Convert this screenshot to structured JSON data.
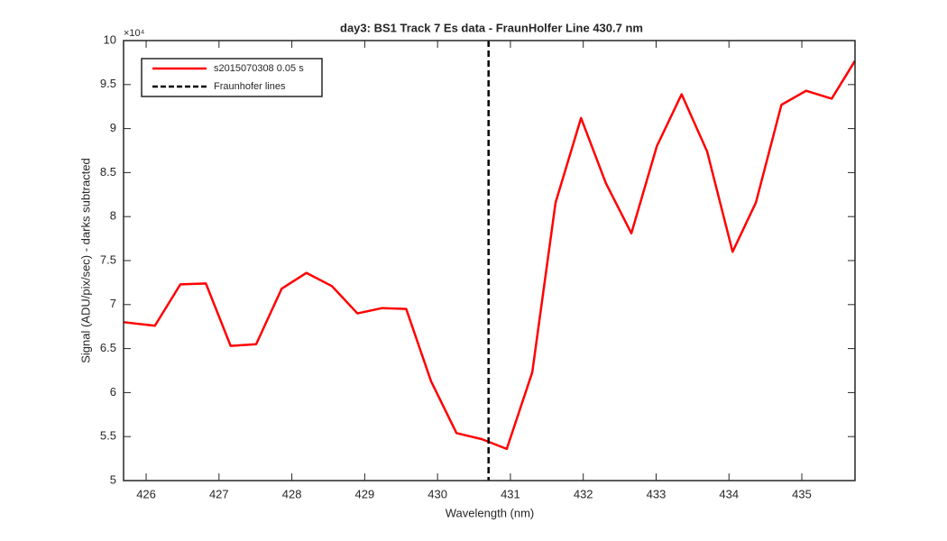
{
  "chart_data": {
    "type": "line",
    "title": "day3: BS1  Track 7 Es data - FraunHolfer Line 430.7 nm",
    "x_label": "Wavelength (nm)",
    "y_label": "Signal (ADU/pix/sec) - darks subtracted",
    "y_exponent_label": "×10⁴",
    "x": [
      425.69,
      426.12,
      426.47,
      426.82,
      427.16,
      427.51,
      427.86,
      428.2,
      428.55,
      428.9,
      429.24,
      429.57,
      429.91,
      430.26,
      430.61,
      430.95,
      431.3,
      431.62,
      431.97,
      432.31,
      432.66,
      433.01,
      433.35,
      433.7,
      434.05,
      434.37,
      434.72,
      435.06,
      435.41,
      435.73
    ],
    "series": [
      {
        "name": "s2015070308 0.05 s",
        "color": "#ff0000",
        "values": [
          6.8,
          6.76,
          7.23,
          7.24,
          6.53,
          6.55,
          7.18,
          7.36,
          7.21,
          6.9,
          6.96,
          6.95,
          6.13,
          5.54,
          5.47,
          5.36,
          6.23,
          8.16,
          9.12,
          8.38,
          7.81,
          8.8,
          9.39,
          8.74,
          7.6,
          8.16,
          9.27,
          9.43,
          9.34,
          9.77
        ]
      }
    ],
    "vlines": [
      {
        "name": "Fraunhofer lines",
        "color": "#000000",
        "x": 430.7
      }
    ],
    "xlim": [
      425.69,
      435.73
    ],
    "ylim": [
      5,
      10
    ],
    "xticks": [
      426,
      427,
      428,
      429,
      430,
      431,
      432,
      433,
      434,
      435
    ],
    "yticks": [
      5,
      5.5,
      6,
      6.5,
      7,
      7.5,
      8,
      8.5,
      9,
      9.5,
      10
    ],
    "legend": "upper left",
    "grid": false
  }
}
